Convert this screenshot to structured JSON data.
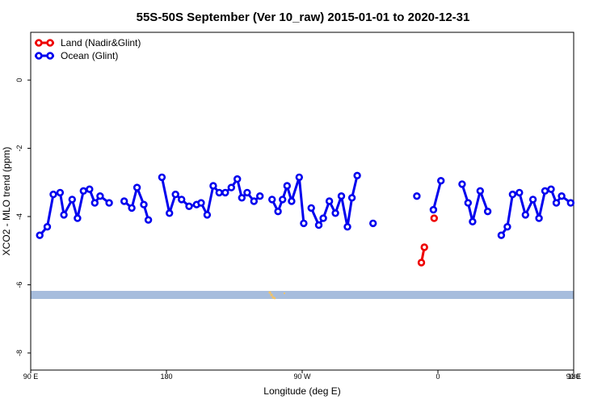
{
  "chart_data": {
    "type": "line",
    "title": "55S-50S September (Ver 10_raw)   2015-01-01 to 2020-12-31",
    "xlabel": "Longitude (deg E)",
    "ylabel": "XCO2 - MLO trend (ppm)",
    "xlim": [
      90,
      450
    ],
    "ylim": [
      -8.5,
      1.4
    ],
    "x_ticks": [
      {
        "value": 90,
        "label": "90 E"
      },
      {
        "value": 180,
        "label": "180"
      },
      {
        "value": 270,
        "label": "90 W"
      },
      {
        "value": 360,
        "label": "0"
      },
      {
        "value": 450,
        "label": "90 E"
      },
      {
        "value": 540,
        "label": "180"
      }
    ],
    "y_ticks": [
      0,
      -2,
      -4,
      -6,
      -8
    ],
    "grid": false,
    "legend_position": "top-left",
    "series": [
      {
        "name": "Land (Nadir&Glint)",
        "color": "#ee0000",
        "segments": [
          [
            [
              349,
              -5.35
            ],
            [
              351,
              -4.9
            ]
          ],
          [
            [
              357.5,
              -4.05
            ]
          ]
        ]
      },
      {
        "name": "Ocean (Glint)",
        "color": "#0000ee",
        "segments": [
          [
            [
              96,
              -4.55
            ],
            [
              101,
              -4.3
            ],
            [
              105,
              -3.35
            ],
            [
              109.5,
              -3.3
            ],
            [
              112,
              -3.95
            ],
            [
              117.5,
              -3.5
            ],
            [
              121,
              -4.05
            ],
            [
              125,
              -3.25
            ],
            [
              129,
              -3.2
            ],
            [
              132.5,
              -3.6
            ],
            [
              136,
              -3.4
            ],
            [
              142,
              -3.6
            ]
          ],
          [
            [
              152,
              -3.55
            ],
            [
              157,
              -3.75
            ],
            [
              160.5,
              -3.15
            ],
            [
              165,
              -3.65
            ],
            [
              168,
              -4.1
            ]
          ],
          [
            [
              177,
              -2.85
            ],
            [
              182,
              -3.9
            ],
            [
              186,
              -3.35
            ],
            [
              190,
              -3.5
            ],
            [
              195,
              -3.7
            ],
            [
              200,
              -3.65
            ],
            [
              203,
              -3.6
            ],
            [
              207,
              -3.95
            ],
            [
              211,
              -3.1
            ],
            [
              215,
              -3.3
            ],
            [
              219,
              -3.3
            ],
            [
              223,
              -3.15
            ],
            [
              227,
              -2.9
            ],
            [
              230,
              -3.45
            ],
            [
              233.5,
              -3.3
            ],
            [
              238,
              -3.55
            ],
            [
              242,
              -3.4
            ]
          ],
          [
            [
              250,
              -3.5
            ],
            [
              254,
              -3.85
            ],
            [
              257,
              -3.5
            ],
            [
              260,
              -3.1
            ],
            [
              263,
              -3.55
            ],
            [
              268,
              -2.85
            ],
            [
              271,
              -4.2
            ]
          ],
          [
            [
              276,
              -3.75
            ],
            [
              281,
              -4.25
            ],
            [
              284,
              -4.05
            ],
            [
              288,
              -3.55
            ],
            [
              292,
              -3.9
            ],
            [
              296,
              -3.4
            ],
            [
              300,
              -4.3
            ],
            [
              303,
              -3.45
            ],
            [
              306.5,
              -2.8
            ]
          ],
          [
            [
              317,
              -4.2
            ]
          ],
          [
            [
              346,
              -3.4
            ]
          ],
          [
            [
              357,
              -3.8
            ],
            [
              362,
              -2.95
            ]
          ],
          [
            [
              376,
              -3.05
            ],
            [
              380,
              -3.6
            ],
            [
              383,
              -4.15
            ],
            [
              388,
              -3.25
            ],
            [
              393,
              -3.85
            ]
          ],
          [
            [
              402,
              -4.55
            ],
            [
              406,
              -4.3
            ],
            [
              409.5,
              -3.35
            ],
            [
              414,
              -3.3
            ],
            [
              418,
              -3.95
            ],
            [
              423,
              -3.5
            ],
            [
              427,
              -4.05
            ],
            [
              431,
              -3.25
            ],
            [
              435,
              -3.2
            ],
            [
              438.5,
              -3.6
            ],
            [
              442,
              -3.4
            ],
            [
              448,
              -3.6
            ]
          ]
        ]
      }
    ]
  }
}
